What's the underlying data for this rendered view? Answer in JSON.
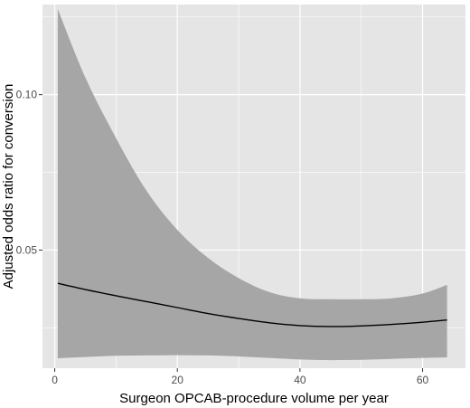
{
  "chart_data": {
    "type": "line",
    "title": "",
    "xlabel": "Surgeon OPCAB-procedure volume per year",
    "ylabel": "Adjusted odds ratio for conversion",
    "xlim": [
      -2,
      67
    ],
    "ylim": [
      0.012,
      0.129
    ],
    "x_ticks": [
      0,
      20,
      40,
      60
    ],
    "x_tick_labels": [
      "0",
      "20",
      "40",
      "60"
    ],
    "y_ticks": [
      0.05,
      0.1
    ],
    "y_tick_labels": [
      "0.05",
      "0.10"
    ],
    "grid": true,
    "legend": "none",
    "series": [
      {
        "role": "fit",
        "x": [
          0.5,
          5,
          10,
          15,
          20,
          25,
          30,
          35,
          40,
          45,
          50,
          55,
          60,
          64
        ],
        "values": [
          0.0393,
          0.0373,
          0.0353,
          0.0334,
          0.0315,
          0.0296,
          0.028,
          0.0266,
          0.0257,
          0.0254,
          0.0256,
          0.0261,
          0.0268,
          0.0275
        ]
      },
      {
        "role": "ci_upper",
        "x": [
          0.5,
          5,
          10,
          15,
          20,
          25,
          30,
          35,
          40,
          45,
          50,
          55,
          60,
          64
        ],
        "values": [
          0.1275,
          0.1055,
          0.086,
          0.069,
          0.0565,
          0.0475,
          0.041,
          0.0365,
          0.0345,
          0.0342,
          0.0342,
          0.0345,
          0.036,
          0.0388
        ]
      },
      {
        "role": "ci_lower",
        "x": [
          0.5,
          5,
          10,
          15,
          20,
          25,
          30,
          35,
          40,
          45,
          50,
          55,
          60,
          64
        ],
        "values": [
          0.0152,
          0.0156,
          0.016,
          0.0161,
          0.0162,
          0.0161,
          0.0158,
          0.0153,
          0.0148,
          0.0146,
          0.0147,
          0.015,
          0.0153,
          0.0155
        ]
      }
    ],
    "colors": {
      "panel": "#e5e5e5",
      "grid_major": "#ffffff",
      "band": "#a6a6a6",
      "line": "#000000",
      "tick_text": "#4d4d4d",
      "axis_title": "#000000"
    }
  }
}
